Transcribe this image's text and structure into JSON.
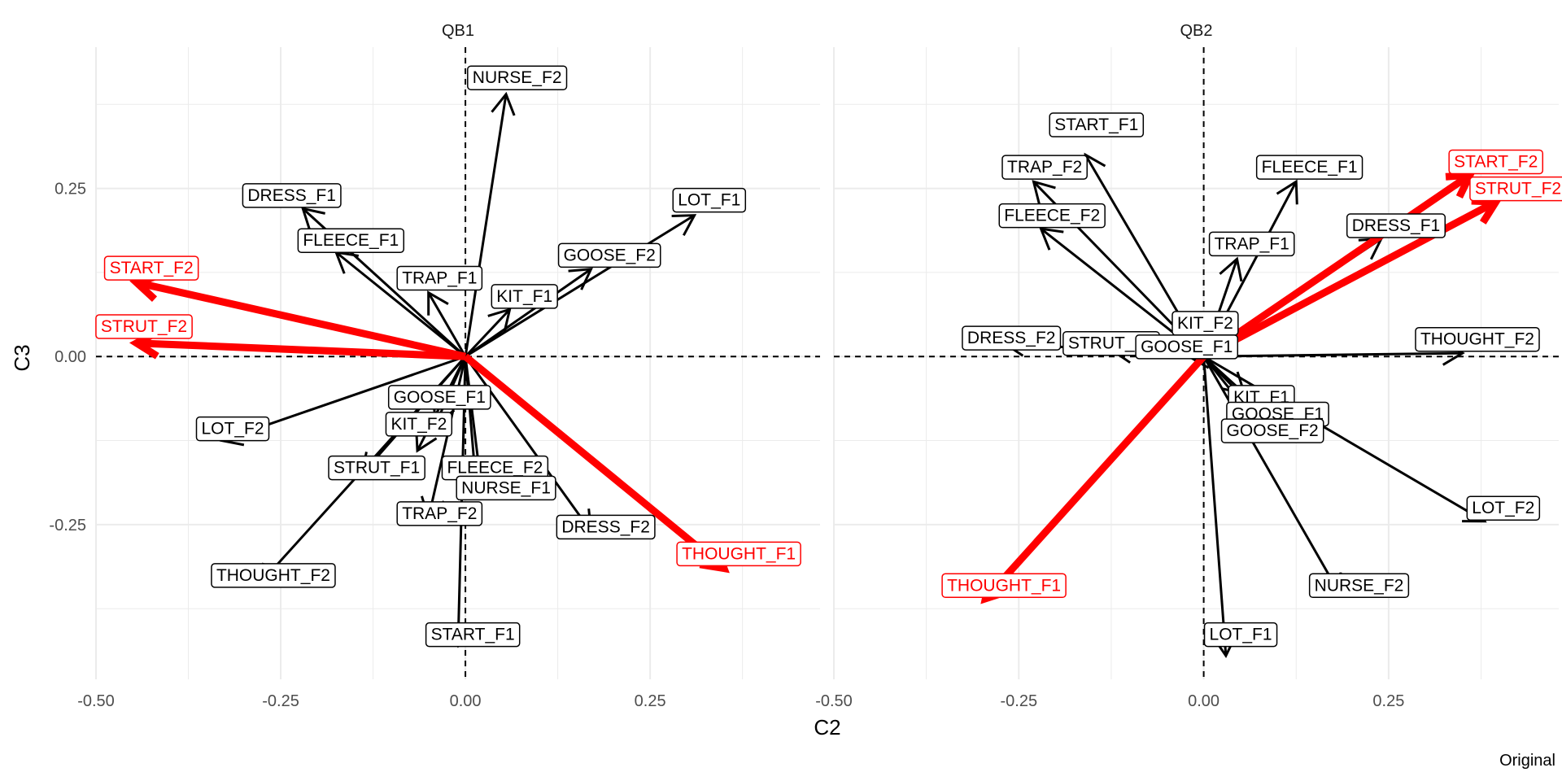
{
  "chart_data": {
    "type": "scatter",
    "xlabel": "C2",
    "ylabel": "C3",
    "caption": "Original",
    "xlim": [
      -0.5,
      0.48
    ],
    "ylim": [
      -0.48,
      0.46
    ],
    "x_ticks": [
      -0.5,
      -0.25,
      0.0,
      0.25
    ],
    "x_tick_labels": [
      "-0.50",
      "-0.25",
      "0.00",
      "0.25"
    ],
    "y_ticks": [
      -0.25,
      0.0,
      0.25
    ],
    "y_tick_labels": [
      "-0.25",
      "0.00",
      "0.25"
    ],
    "grid": true,
    "highlight_color": "#ff0000",
    "base_color": "#000000",
    "panels": [
      {
        "title": "QB1",
        "vectors": [
          {
            "name": "NURSE_F2",
            "x": 0.055,
            "y": 0.39,
            "lx": 0.07,
            "ly": 0.415,
            "highlight": false
          },
          {
            "name": "DRESS_F1",
            "x": -0.22,
            "y": 0.22,
            "lx": -0.235,
            "ly": 0.24,
            "highlight": false
          },
          {
            "name": "FLEECE_F1",
            "x": -0.175,
            "y": 0.155,
            "lx": -0.155,
            "ly": 0.173,
            "highlight": false
          },
          {
            "name": "LOT_F1",
            "x": 0.31,
            "y": 0.21,
            "lx": 0.33,
            "ly": 0.233,
            "highlight": false
          },
          {
            "name": "GOOSE_F2",
            "x": 0.17,
            "y": 0.13,
            "lx": 0.195,
            "ly": 0.151,
            "highlight": false
          },
          {
            "name": "TRAP_F1",
            "x": -0.05,
            "y": 0.095,
            "lx": -0.035,
            "ly": 0.117,
            "highlight": false
          },
          {
            "name": "KIT_F1",
            "x": 0.06,
            "y": 0.07,
            "lx": 0.08,
            "ly": 0.09,
            "highlight": false
          },
          {
            "name": "START_F2",
            "x": -0.445,
            "y": 0.11,
            "lx": -0.425,
            "ly": 0.132,
            "highlight": true
          },
          {
            "name": "STRUT_F2",
            "x": -0.445,
            "y": 0.02,
            "lx": -0.435,
            "ly": 0.045,
            "highlight": true
          },
          {
            "name": "GOOSE_F1",
            "x": -0.04,
            "y": -0.1,
            "lx": -0.035,
            "ly": -0.06,
            "highlight": false
          },
          {
            "name": "LOT_F2",
            "x": -0.33,
            "y": -0.125,
            "lx": -0.315,
            "ly": -0.107,
            "highlight": false
          },
          {
            "name": "KIT_F2",
            "x": -0.065,
            "y": -0.14,
            "lx": -0.063,
            "ly": -0.1,
            "highlight": false
          },
          {
            "name": "STRUT_F1",
            "x": -0.14,
            "y": -0.175,
            "lx": -0.12,
            "ly": -0.165,
            "highlight": false
          },
          {
            "name": "FLEECE_F2",
            "x": 0.02,
            "y": -0.18,
            "lx": 0.04,
            "ly": -0.165,
            "highlight": false
          },
          {
            "name": "NURSE_F1",
            "x": 0.015,
            "y": -0.2,
            "lx": 0.055,
            "ly": -0.195,
            "highlight": false
          },
          {
            "name": "TRAP_F2",
            "x": -0.05,
            "y": -0.24,
            "lx": -0.035,
            "ly": -0.233,
            "highlight": false
          },
          {
            "name": "DRESS_F2",
            "x": 0.17,
            "y": -0.26,
            "lx": 0.19,
            "ly": -0.253,
            "highlight": false
          },
          {
            "name": "THOUGHT_F1",
            "x": 0.35,
            "y": -0.315,
            "lx": 0.37,
            "ly": -0.293,
            "highlight": true
          },
          {
            "name": "THOUGHT_F2",
            "x": -0.28,
            "y": -0.34,
            "lx": -0.26,
            "ly": -0.325,
            "highlight": false
          },
          {
            "name": "START_F1",
            "x": -0.01,
            "y": -0.43,
            "lx": 0.01,
            "ly": -0.413,
            "highlight": false
          }
        ]
      },
      {
        "title": "QB2",
        "vectors": [
          {
            "name": "START_F1",
            "x": -0.16,
            "y": 0.3,
            "lx": -0.145,
            "ly": 0.345,
            "highlight": false
          },
          {
            "name": "TRAP_F2",
            "x": -0.23,
            "y": 0.26,
            "lx": -0.215,
            "ly": 0.282,
            "highlight": false
          },
          {
            "name": "FLEECE_F1",
            "x": 0.125,
            "y": 0.26,
            "lx": 0.143,
            "ly": 0.282,
            "highlight": false
          },
          {
            "name": "FLEECE_F2",
            "x": -0.22,
            "y": 0.19,
            "lx": -0.205,
            "ly": 0.21,
            "highlight": false
          },
          {
            "name": "START_F2",
            "x": 0.36,
            "y": 0.27,
            "lx": 0.395,
            "ly": 0.29,
            "highlight": true
          },
          {
            "name": "STRUT_F2",
            "x": 0.395,
            "y": 0.23,
            "lx": 0.425,
            "ly": 0.25,
            "highlight": true
          },
          {
            "name": "DRESS_F1",
            "x": 0.24,
            "y": 0.175,
            "lx": 0.26,
            "ly": 0.195,
            "highlight": false
          },
          {
            "name": "TRAP_F1",
            "x": 0.045,
            "y": 0.145,
            "lx": 0.065,
            "ly": 0.168,
            "highlight": false
          },
          {
            "name": "KIT_F2",
            "x": 0.0,
            "y": 0.05,
            "lx": 0.002,
            "ly": 0.05,
            "highlight": false
          },
          {
            "name": "DRESS_F2",
            "x": -0.27,
            "y": 0.02,
            "lx": -0.26,
            "ly": 0.028,
            "highlight": false
          },
          {
            "name": "STRUT_F1",
            "x": -0.125,
            "y": 0.01,
            "lx": -0.125,
            "ly": 0.02,
            "highlight": false
          },
          {
            "name": "GOOSE_F1",
            "x": -0.02,
            "y": 0.0,
            "lx": -0.023,
            "ly": 0.015,
            "highlight": false
          },
          {
            "name": "THOUGHT_F2",
            "x": 0.35,
            "y": 0.005,
            "lx": 0.37,
            "ly": 0.026,
            "highlight": false
          },
          {
            "name": "KIT_F1",
            "x": 0.055,
            "y": -0.055,
            "lx": 0.078,
            "ly": -0.06,
            "highlight": false
          },
          {
            "name": "GOOSE_F1",
            "x": 0.075,
            "y": -0.085,
            "lx": 0.1,
            "ly": -0.085,
            "highlight": false
          },
          {
            "name": "GOOSE_F2",
            "x": 0.08,
            "y": -0.11,
            "lx": 0.093,
            "ly": -0.11,
            "highlight": false
          },
          {
            "name": "LOT_F2",
            "x": 0.38,
            "y": -0.245,
            "lx": 0.405,
            "ly": -0.225,
            "highlight": false
          },
          {
            "name": "THOUGHT_F1",
            "x": -0.295,
            "y": -0.36,
            "lx": -0.27,
            "ly": -0.34,
            "highlight": true
          },
          {
            "name": "NURSE_F2",
            "x": 0.185,
            "y": -0.355,
            "lx": 0.21,
            "ly": -0.34,
            "highlight": false
          },
          {
            "name": "LOT_F1",
            "x": 0.03,
            "y": -0.445,
            "lx": 0.05,
            "ly": -0.413,
            "highlight": false
          }
        ]
      }
    ]
  }
}
